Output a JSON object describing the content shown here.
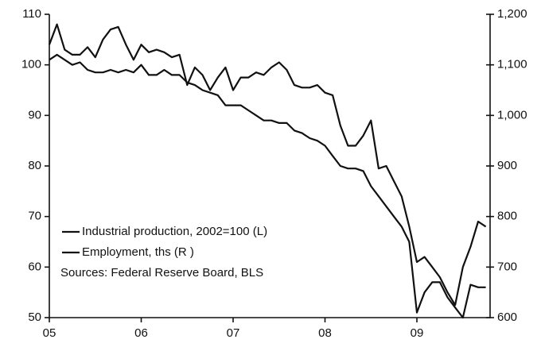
{
  "chart_data": {
    "type": "line",
    "categories": [
      "05",
      null,
      null,
      null,
      null,
      null,
      null,
      null,
      null,
      null,
      null,
      null,
      "06",
      null,
      null,
      null,
      null,
      null,
      null,
      null,
      null,
      null,
      null,
      null,
      "07",
      null,
      null,
      null,
      null,
      null,
      null,
      null,
      null,
      null,
      null,
      null,
      "08",
      null,
      null,
      null,
      null,
      null,
      null,
      null,
      null,
      null,
      null,
      null,
      "09",
      null,
      null,
      null,
      null,
      null,
      null,
      null,
      null,
      null
    ],
    "series": [
      {
        "name": "Industrial production,  2002=100 (L)",
        "color": "#111111",
        "axis": "y",
        "values": [
          104,
          108,
          103,
          102,
          102,
          103.5,
          101.5,
          105,
          107,
          107.5,
          104,
          101,
          104,
          102.5,
          103,
          102.5,
          101.5,
          102,
          96,
          99.5,
          98,
          95,
          97.5,
          99.5,
          95,
          97.5,
          97.5,
          98.5,
          98,
          99.5,
          100.5,
          99,
          96,
          95.5,
          95.5,
          96,
          94.5,
          94,
          88,
          84,
          84,
          86,
          89,
          79.5,
          80,
          77,
          74,
          68,
          61,
          62,
          60,
          58,
          55,
          52.5,
          60,
          64,
          69,
          68
        ]
      },
      {
        "name": "Employment, ths (R )",
        "color": "#111111",
        "axis": "y2",
        "values": [
          1110,
          1120,
          1110,
          1100,
          1105,
          1090,
          1085,
          1085,
          1090,
          1085,
          1090,
          1085,
          1100,
          1080,
          1080,
          1090,
          1080,
          1080,
          1065,
          1060,
          1050,
          1045,
          1040,
          1020,
          1020,
          1020,
          1010,
          1000,
          990,
          990,
          985,
          985,
          970,
          965,
          955,
          950,
          940,
          920,
          900,
          895,
          895,
          890,
          860,
          840,
          820,
          800,
          780,
          750,
          610,
          650,
          670,
          670,
          640,
          620,
          600,
          665,
          660,
          660
        ]
      }
    ],
    "annotation": "Sources: Federal Reserve Board, BLS",
    "ylim": [
      50,
      110
    ],
    "yticks": [
      50,
      60,
      70,
      80,
      90,
      100,
      110
    ],
    "y2lim": [
      600,
      1200
    ],
    "y2ticks": [
      {
        "value": 600,
        "label": "600"
      },
      {
        "value": 700,
        "label": "700"
      },
      {
        "value": 800,
        "label": "800"
      },
      {
        "value": 900,
        "label": "900"
      },
      {
        "value": 1000,
        "label": "1,000"
      },
      {
        "value": 1100,
        "label": "1,100"
      },
      {
        "value": 1200,
        "label": "1,200"
      }
    ],
    "legend": "lower left",
    "grid": false
  }
}
